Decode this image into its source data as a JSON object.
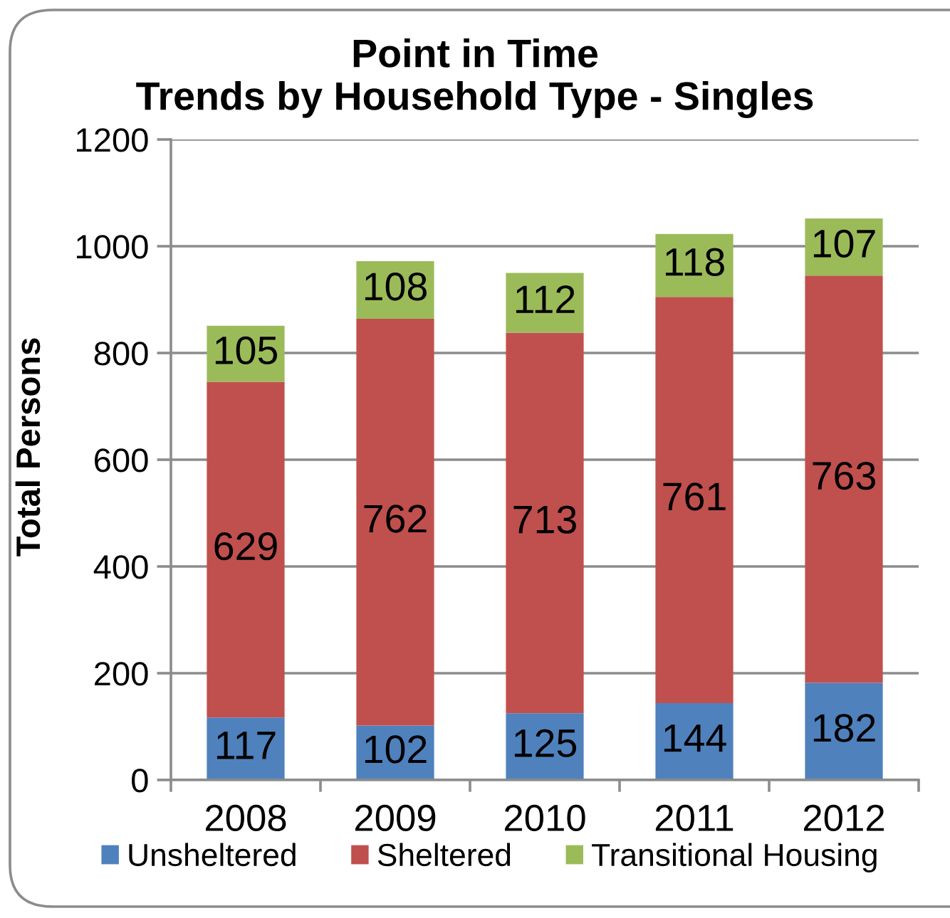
{
  "chart_data": {
    "type": "bar",
    "title": "Point in Time\nTrends by Household Type - Singles",
    "ylabel": "Total Persons",
    "categories": [
      "2008",
      "2009",
      "2010",
      "2011",
      "2012"
    ],
    "series": [
      {
        "name": "Unsheltered",
        "color": "#4f81bd",
        "values": [
          117,
          102,
          125,
          144,
          182
        ]
      },
      {
        "name": "Sheltered",
        "color": "#c0504d",
        "values": [
          629,
          762,
          713,
          761,
          763
        ]
      },
      {
        "name": "Transitional Housing",
        "color": "#9bbb59",
        "values": [
          105,
          108,
          112,
          118,
          107
        ]
      }
    ],
    "stacked": true,
    "data_labels": true,
    "ylim": [
      0,
      1200
    ],
    "yticks": [
      0,
      200,
      400,
      600,
      800,
      1000,
      1200
    ],
    "grid": "y",
    "legend": "bottom"
  }
}
